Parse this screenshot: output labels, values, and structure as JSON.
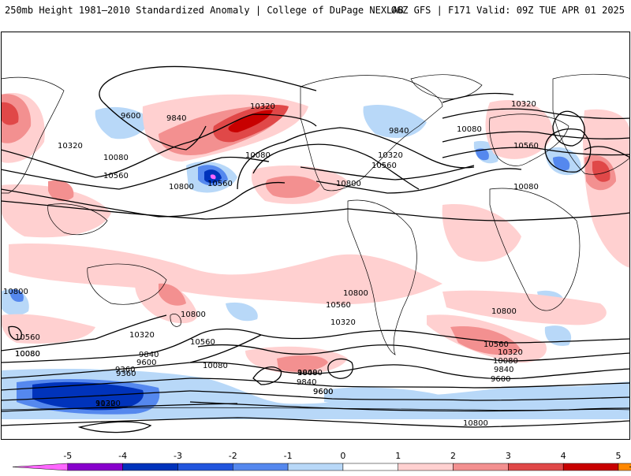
{
  "header": {
    "left_title": "250mb Height 1981–2010 Standardized Anomaly | College of DuPage NEXLAB",
    "right_title": "06Z GFS | F171 Valid: 09Z TUE APR 01 2025"
  },
  "colorbar": {
    "ticks": [
      "-5",
      "-4",
      "-3",
      "-2",
      "-1",
      "0",
      "1",
      "2",
      "3",
      "4",
      "5"
    ],
    "colors": [
      "#ff66ff",
      "#8800cc",
      "#0033bb",
      "#2255dd",
      "#5588ee",
      "#b8d8f8",
      "#ffffff",
      "#ffd0d0",
      "#f39090",
      "#e04848",
      "#c80000",
      "#ff8800",
      "#ffcc00"
    ]
  },
  "contour_labels": [
    {
      "key": "c1",
      "text": "9600"
    },
    {
      "key": "c2",
      "text": "9840"
    },
    {
      "key": "c3",
      "text": "10320"
    },
    {
      "key": "c4",
      "text": "10080"
    },
    {
      "key": "c5",
      "text": "10560"
    },
    {
      "key": "c6",
      "text": "10800"
    },
    {
      "key": "c7",
      "text": "10560"
    },
    {
      "key": "c8",
      "text": "10320"
    },
    {
      "key": "c9",
      "text": "10080"
    },
    {
      "key": "c10",
      "text": "9840"
    },
    {
      "key": "c11",
      "text": "10080"
    },
    {
      "key": "c12",
      "text": "10320"
    },
    {
      "key": "c13",
      "text": "10560"
    },
    {
      "key": "c14",
      "text": "10800"
    },
    {
      "key": "c15",
      "text": "10320"
    },
    {
      "key": "c16",
      "text": "10560"
    },
    {
      "key": "c17",
      "text": "10080"
    },
    {
      "key": "c18",
      "text": "10800"
    },
    {
      "key": "c19",
      "text": "10800"
    },
    {
      "key": "c20",
      "text": "10560"
    },
    {
      "key": "c21",
      "text": "10080"
    },
    {
      "key": "c22",
      "text": "9360"
    },
    {
      "key": "c23",
      "text": "9120"
    },
    {
      "key": "c24",
      "text": "10800"
    },
    {
      "key": "c25",
      "text": "10560"
    },
    {
      "key": "c26",
      "text": "10320"
    },
    {
      "key": "c27",
      "text": "9840"
    },
    {
      "key": "c28",
      "text": "9600"
    },
    {
      "key": "c29",
      "text": "10080"
    },
    {
      "key": "c30",
      "text": "10800"
    },
    {
      "key": "c31",
      "text": "10560"
    },
    {
      "key": "c32",
      "text": "10320"
    },
    {
      "key": "c33",
      "text": "10080"
    },
    {
      "key": "c34",
      "text": "9840"
    },
    {
      "key": "c35",
      "text": "9600"
    },
    {
      "key": "c36",
      "text": "10800"
    },
    {
      "key": "c37",
      "text": "10560"
    },
    {
      "key": "c38",
      "text": "10320"
    },
    {
      "key": "c39",
      "text": "10080"
    },
    {
      "key": "c40",
      "text": "9840"
    },
    {
      "key": "c41",
      "text": "9600"
    },
    {
      "key": "c42",
      "text": "9360"
    },
    {
      "key": "c43",
      "text": "10080"
    },
    {
      "key": "c44",
      "text": "10320"
    },
    {
      "key": "c45",
      "text": "9840"
    },
    {
      "key": "c46",
      "text": "9600"
    }
  ]
}
